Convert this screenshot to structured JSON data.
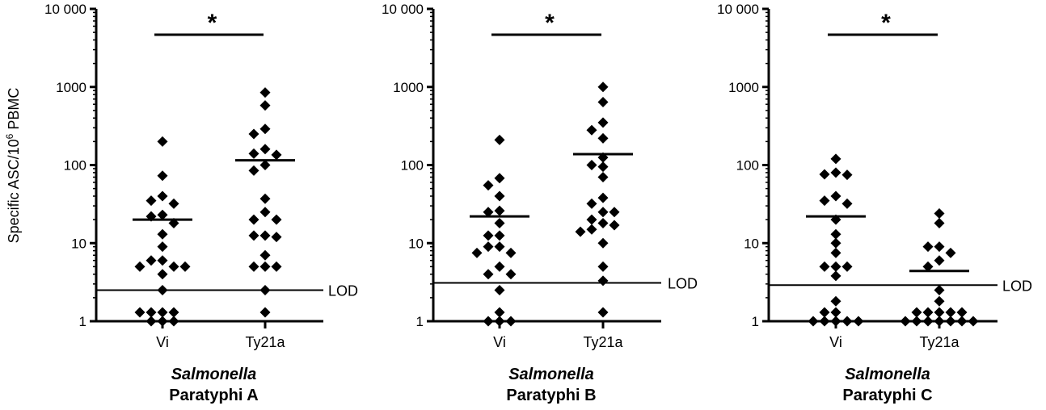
{
  "chart_data": {
    "ylabel_main": "Specific ASC/10",
    "ylabel_sup": "6",
    "ylabel_tail": " PBMC",
    "yscale": "log",
    "ylim": [
      1,
      10000
    ],
    "yticks": [
      1,
      10,
      100,
      1000,
      10000
    ],
    "yticklabels": [
      "1",
      "10",
      "100",
      "1000",
      "10 000"
    ],
    "categories": [
      "Vi",
      "Ty21a"
    ],
    "lod_label": "LOD",
    "significance_label": "*",
    "panels": [
      {
        "title_line1": "Salmonella",
        "title_line2": "Paratyphi A",
        "lod": 2.5,
        "medians": [
          20,
          115
        ],
        "groups": [
          [
            200,
            73,
            40,
            35,
            32,
            23,
            22,
            18,
            13,
            9,
            6,
            6,
            5,
            5,
            5,
            4,
            2.5,
            1.3,
            1.3,
            1.3,
            1.3,
            1,
            1,
            1
          ],
          [
            850,
            580,
            290,
            250,
            160,
            140,
            135,
            100,
            85,
            37,
            25,
            20,
            20,
            12.5,
            12.5,
            12,
            7,
            5,
            5,
            5,
            2.5,
            1.3
          ]
        ]
      },
      {
        "title_line1": "Salmonella",
        "title_line2": "Paratyphi B",
        "lod": 3.1,
        "medians": [
          22,
          138
        ],
        "groups": [
          [
            210,
            68,
            55,
            40,
            26,
            25,
            18,
            12.5,
            12.5,
            9,
            9,
            7.5,
            7.5,
            5,
            4,
            4,
            2.5,
            1.3,
            1,
            1,
            1
          ],
          [
            1000,
            640,
            350,
            280,
            220,
            125,
            100,
            95,
            70,
            38,
            32,
            25,
            25,
            20,
            18,
            17,
            15,
            14,
            10,
            5,
            3.3,
            1.3
          ]
        ]
      },
      {
        "title_line1": "Salmonella",
        "title_line2": "Paratyphi C",
        "lod": 2.9,
        "medians": [
          22,
          4.4
        ],
        "groups": [
          [
            120,
            80,
            76,
            75,
            40,
            35,
            32,
            20,
            13,
            10,
            7.5,
            5,
            5,
            5,
            3.8,
            1.8,
            1.3,
            1.3,
            1,
            1,
            1,
            1,
            1
          ],
          [
            24,
            18,
            9,
            9,
            7.5,
            6,
            5,
            2.5,
            1.8,
            1.3,
            1.3,
            1.3,
            1.3,
            1.3,
            1,
            1,
            1,
            1,
            1,
            1,
            1
          ]
        ]
      }
    ]
  }
}
